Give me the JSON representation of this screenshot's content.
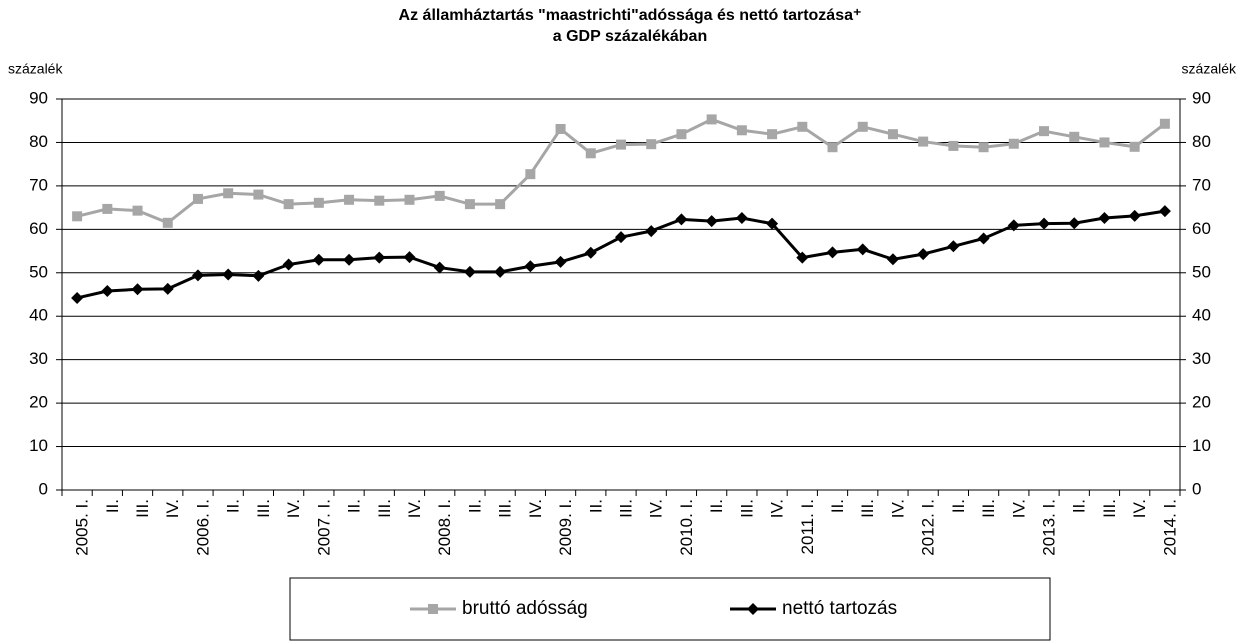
{
  "chart_data": {
    "type": "line",
    "title": "Az államháztartás  \"maastrichti\"adóssága  és nettó tartozása⁺",
    "subtitle": "a GDP százalékában",
    "y_label": "százalék",
    "y2_label": "százalék",
    "categories": [
      "2005. I.",
      "II.",
      "III.",
      "IV.",
      "2006. I.",
      "II.",
      "III.",
      "IV.",
      "2007. I.",
      "II.",
      "III.",
      "IV.",
      "2008. I.",
      "II.",
      "III.",
      "IV.",
      "2009. I.",
      "II.",
      "III.",
      "IV.",
      "2010. I.",
      "II.",
      "III.",
      "IV.",
      "2011. I.",
      "II.",
      "III.",
      "IV.",
      "2012. I.",
      "II.",
      "III.",
      "IV.",
      "2013. I.",
      "II.",
      "III.",
      "IV.",
      "2014. I."
    ],
    "series": [
      {
        "name": "bruttó adósság",
        "color": "#a6a6a6",
        "marker": "square",
        "values": [
          63,
          64.7,
          64.3,
          61.5,
          67,
          68.3,
          68,
          65.8,
          66.1,
          66.8,
          66.6,
          66.8,
          67.7,
          65.8,
          65.8,
          72.7,
          83.1,
          77.5,
          79.5,
          79.6,
          81.9,
          85.3,
          82.8,
          81.9,
          83.6,
          78.9,
          83.6,
          81.9,
          80.2,
          79.2,
          78.9,
          79.7,
          82.6,
          81.3,
          80,
          79,
          84.3
        ]
      },
      {
        "name": "nettó tartozás",
        "color": "#000000",
        "marker": "diamond",
        "values": [
          44.2,
          45.8,
          46.2,
          46.3,
          49.4,
          49.6,
          49.3,
          51.9,
          53,
          53,
          53.5,
          53.6,
          51.2,
          50.2,
          50.2,
          51.5,
          52.5,
          54.6,
          58.2,
          59.6,
          62.3,
          61.9,
          62.6,
          61.3,
          53.5,
          54.7,
          55.4,
          53.1,
          54.3,
          56.1,
          57.9,
          60.9,
          61.3,
          61.4,
          62.6,
          63.1,
          64.2
        ]
      }
    ],
    "ylim": [
      0,
      90
    ],
    "yticks": [
      0,
      10,
      20,
      30,
      40,
      50,
      60,
      70,
      80,
      90
    ],
    "y2lim": [
      0,
      90
    ],
    "y2ticks": [
      0,
      10,
      20,
      30,
      40,
      50,
      60,
      70,
      80,
      90
    ],
    "grid": true,
    "legend": "bottom"
  }
}
